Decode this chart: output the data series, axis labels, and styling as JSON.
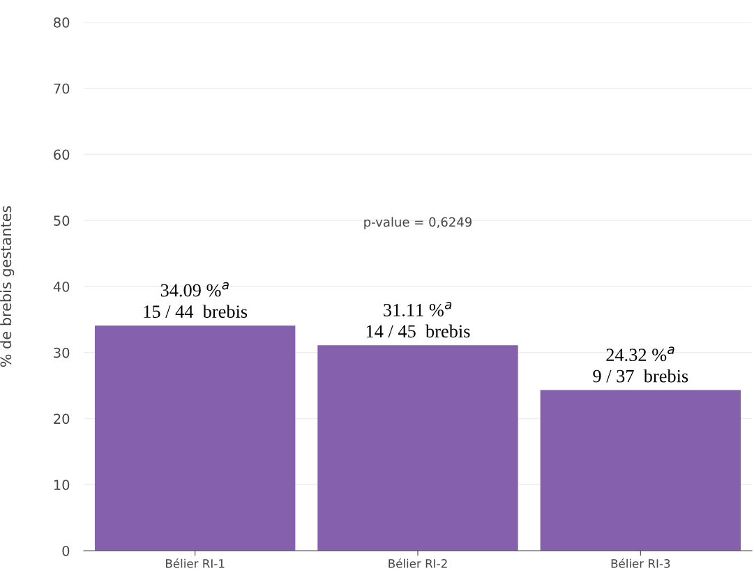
{
  "chart_data": {
    "type": "bar",
    "ylabel": "% de brebis gestantes",
    "categories": [
      "Bélier RI-1",
      "Bélier RI-2",
      "Bélier RI-3"
    ],
    "values": [
      34.09,
      31.11,
      24.32
    ],
    "color": "#8561ad",
    "value_labels": [
      "34.09 %$^{a}$\n15 / 44  brebis",
      "31.11 %$^{a}$\n14 / 45  brebis",
      "24.32 %$^{a}$\n9 / 37  brebis"
    ],
    "annotations": [
      "p-value = 0,6249"
    ],
    "ylim": [
      0,
      80
    ],
    "yticks": [
      0,
      10,
      20,
      30,
      40,
      50,
      60,
      70,
      80
    ],
    "grid": "y"
  }
}
